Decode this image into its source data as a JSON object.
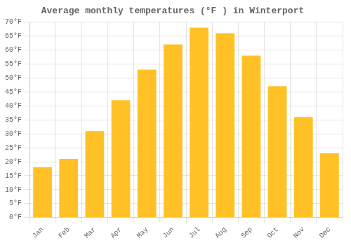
{
  "chart_data": {
    "type": "bar",
    "title": "Average monthly temperatures (°F ) in Winterport",
    "categories": [
      "Jan",
      "Feb",
      "Mar",
      "Apr",
      "May",
      "Jun",
      "Jul",
      "Aug",
      "Sep",
      "Oct",
      "Nov",
      "Dec"
    ],
    "values": [
      18,
      21,
      31,
      42,
      53,
      62,
      68,
      66,
      58,
      47,
      36,
      23
    ],
    "color": "#FFC125",
    "ylim": [
      0,
      70
    ],
    "yticks": [
      {
        "value": 0,
        "label": "0°F"
      },
      {
        "value": 5,
        "label": "5°F"
      },
      {
        "value": 10,
        "label": "10°F"
      },
      {
        "value": 15,
        "label": "15°F"
      },
      {
        "value": 20,
        "label": "20°F"
      },
      {
        "value": 25,
        "label": "25°F"
      },
      {
        "value": 30,
        "label": "30°F"
      },
      {
        "value": 35,
        "label": "35°F"
      },
      {
        "value": 40,
        "label": "40°F"
      },
      {
        "value": 45,
        "label": "45°F"
      },
      {
        "value": 50,
        "label": "50°F"
      },
      {
        "value": 55,
        "label": "55°F"
      },
      {
        "value": 60,
        "label": "60°F"
      },
      {
        "value": 65,
        "label": "65°F"
      },
      {
        "value": 70,
        "label": "70°F"
      }
    ],
    "grid": true
  }
}
